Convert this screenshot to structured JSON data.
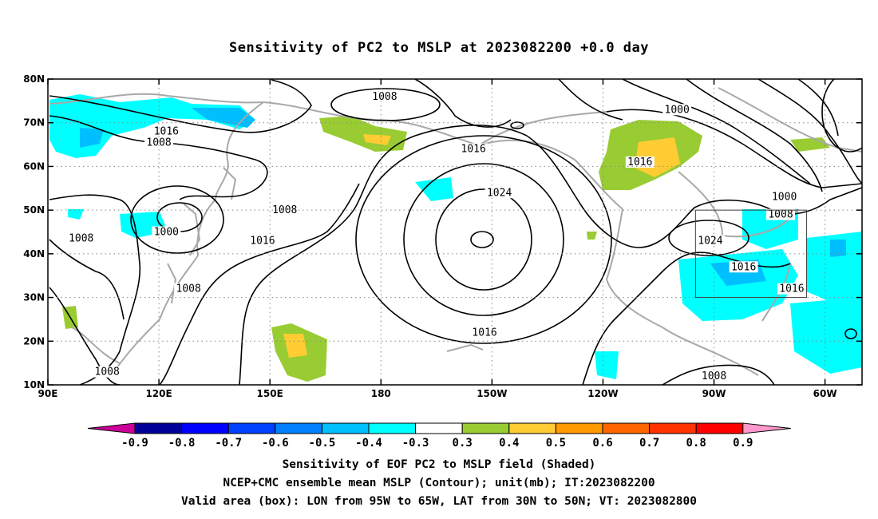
{
  "title": "Sensitivity of PC2 to MSLP at 2023082200 +0.0 day",
  "map": {
    "lat_ticks": [
      "80N",
      "70N",
      "60N",
      "50N",
      "40N",
      "30N",
      "20N",
      "10N"
    ],
    "lon_ticks": [
      "90E",
      "120E",
      "150E",
      "180",
      "150W",
      "120W",
      "90W",
      "60W"
    ],
    "contour_labels": [
      {
        "text": "1008",
        "lon": 181,
        "lat": 76
      },
      {
        "text": "1000",
        "lon": 260,
        "lat": 73
      },
      {
        "text": "1016",
        "lon": 122,
        "lat": 68
      },
      {
        "text": "1008",
        "lon": 120,
        "lat": 65.5
      },
      {
        "text": "1016",
        "lon": 205,
        "lat": 64
      },
      {
        "text": "1016",
        "lon": 250,
        "lat": 61
      },
      {
        "text": "1024",
        "lon": 212,
        "lat": 54
      },
      {
        "text": "1008",
        "lon": 154,
        "lat": 50
      },
      {
        "text": "1000",
        "lon": 289,
        "lat": 53
      },
      {
        "text": "1008",
        "lon": 288,
        "lat": 49
      },
      {
        "text": "1008",
        "lon": 99,
        "lat": 43.5
      },
      {
        "text": "1000",
        "lon": 122,
        "lat": 45
      },
      {
        "text": "1016",
        "lon": 148,
        "lat": 43
      },
      {
        "text": "1024",
        "lon": 269,
        "lat": 43
      },
      {
        "text": "1016",
        "lon": 278,
        "lat": 37
      },
      {
        "text": "1016",
        "lon": 291,
        "lat": 32
      },
      {
        "text": "1008",
        "lon": 128,
        "lat": 32
      },
      {
        "text": "1016",
        "lon": 208,
        "lat": 22
      },
      {
        "text": "1008",
        "lon": 106,
        "lat": 13
      },
      {
        "text": "1008",
        "lon": 270,
        "lat": 12
      }
    ],
    "valid_box": {
      "lon_from": 265,
      "lon_to": 295,
      "lat_from": 30,
      "lat_to": 50
    }
  },
  "colorbar": {
    "labels": [
      "-0.9",
      "-0.8",
      "-0.7",
      "-0.6",
      "-0.5",
      "-0.4",
      "-0.3",
      "0.3",
      "0.4",
      "0.5",
      "0.6",
      "0.7",
      "0.8",
      "0.9"
    ],
    "colors": [
      "#000099",
      "#0000ff",
      "#0040ff",
      "#0080ff",
      "#00bfff",
      "#00ffff",
      "#ffffff",
      "#99cc33",
      "#ffcc33",
      "#ff9900",
      "#ff6600",
      "#ff3300",
      "#ff0000"
    ],
    "low_color": "#cc0099",
    "high_color": "#ff99cc"
  },
  "footer": {
    "line1": "Sensitivity of EOF PC2 to MSLP field (Shaded)",
    "line2": "NCEP+CMC ensemble mean MSLP (Contour); unit(mb); IT:2023082200",
    "line3": "Valid area (box): LON from 95W to 65W, LAT from 30N to 50N; VT: 2023082800"
  }
}
